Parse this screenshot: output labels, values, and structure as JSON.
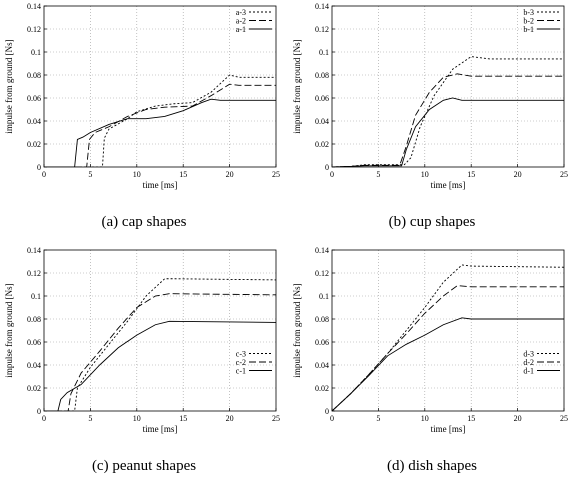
{
  "chart_data": [
    {
      "type": "line",
      "id": "a",
      "caption": "(a) cap shapes",
      "xlabel": "time [ms]",
      "ylabel": "impulse from ground [Ns]",
      "xlim": [
        0,
        25
      ],
      "ylim": [
        0,
        0.14
      ],
      "xticks": [
        "0",
        "5",
        "10",
        "15",
        "20",
        "25"
      ],
      "yticks": [
        "0",
        "0.02",
        "0.04",
        "0.06",
        "0.08",
        "0.1",
        "0.12",
        "0.14"
      ],
      "grid": true,
      "legend_position": "top-right",
      "series": [
        {
          "name": "a-3",
          "style": "dotted",
          "points": [
            [
              0,
              0
            ],
            [
              6.3,
              0
            ],
            [
              6.5,
              0.025
            ],
            [
              7,
              0.033
            ],
            [
              9,
              0.042
            ],
            [
              10,
              0.048
            ],
            [
              12,
              0.053
            ],
            [
              14,
              0.055
            ],
            [
              16,
              0.056
            ],
            [
              18,
              0.065
            ],
            [
              20,
              0.08
            ],
            [
              21,
              0.078
            ],
            [
              25,
              0.078
            ]
          ]
        },
        {
          "name": "a-2",
          "style": "dashed",
          "points": [
            [
              0,
              0
            ],
            [
              4.6,
              0
            ],
            [
              4.9,
              0.024
            ],
            [
              5.5,
              0.03
            ],
            [
              7,
              0.035
            ],
            [
              9,
              0.044
            ],
            [
              11,
              0.05
            ],
            [
              13,
              0.052
            ],
            [
              16,
              0.053
            ],
            [
              18,
              0.062
            ],
            [
              20,
              0.072
            ],
            [
              21,
              0.071
            ],
            [
              25,
              0.071
            ]
          ]
        },
        {
          "name": "a-1",
          "style": "solid",
          "points": [
            [
              0,
              0
            ],
            [
              3.3,
              0
            ],
            [
              3.6,
              0.024
            ],
            [
              4.2,
              0.026
            ],
            [
              5,
              0.03
            ],
            [
              7,
              0.037
            ],
            [
              9,
              0.042
            ],
            [
              11,
              0.042
            ],
            [
              13,
              0.044
            ],
            [
              15,
              0.049
            ],
            [
              17,
              0.056
            ],
            [
              18,
              0.059
            ],
            [
              19,
              0.058
            ],
            [
              25,
              0.058
            ]
          ]
        }
      ]
    },
    {
      "type": "line",
      "id": "b",
      "caption": "(b) cup shapes",
      "xlabel": "time [ms]",
      "ylabel": "impulse from ground [Ns]",
      "xlim": [
        0,
        25
      ],
      "ylim": [
        0,
        0.14
      ],
      "xticks": [
        "0",
        "5",
        "10",
        "15",
        "20",
        "25"
      ],
      "yticks": [
        "0",
        "0.02",
        "0.04",
        "0.06",
        "0.08",
        "0.1",
        "0.12",
        "0.14"
      ],
      "grid": true,
      "legend_position": "top-right",
      "series": [
        {
          "name": "b-3",
          "style": "dotted",
          "points": [
            [
              0,
              0
            ],
            [
              2,
              0.0005
            ],
            [
              3.5,
              0.002
            ],
            [
              7.8,
              0.002
            ],
            [
              8.5,
              0.008
            ],
            [
              9.5,
              0.035
            ],
            [
              11,
              0.062
            ],
            [
              13,
              0.085
            ],
            [
              15,
              0.096
            ],
            [
              17,
              0.094
            ],
            [
              25,
              0.094
            ]
          ]
        },
        {
          "name": "b-2",
          "style": "dashed",
          "points": [
            [
              0,
              0
            ],
            [
              2,
              0.0005
            ],
            [
              3.5,
              0.0015
            ],
            [
              7.3,
              0.0015
            ],
            [
              8,
              0.018
            ],
            [
              9,
              0.045
            ],
            [
              10.5,
              0.065
            ],
            [
              12,
              0.078
            ],
            [
              13.5,
              0.081
            ],
            [
              15,
              0.079
            ],
            [
              25,
              0.079
            ]
          ]
        },
        {
          "name": "b-1",
          "style": "solid",
          "points": [
            [
              0,
              0
            ],
            [
              2,
              0.0005
            ],
            [
              3.5,
              0.001
            ],
            [
              7.5,
              0.001
            ],
            [
              8,
              0.015
            ],
            [
              9,
              0.035
            ],
            [
              10.5,
              0.05
            ],
            [
              12,
              0.058
            ],
            [
              13,
              0.06
            ],
            [
              14,
              0.058
            ],
            [
              25,
              0.058
            ]
          ]
        }
      ]
    },
    {
      "type": "line",
      "id": "c",
      "caption": "(c) peanut shapes",
      "xlabel": "time [ms]",
      "ylabel": "impulse from ground [Ns]",
      "xlim": [
        0,
        25
      ],
      "ylim": [
        0,
        0.14
      ],
      "xticks": [
        "0",
        "5",
        "10",
        "15",
        "20",
        "25"
      ],
      "yticks": [
        "0",
        "0.02",
        "0.04",
        "0.06",
        "0.08",
        "0.1",
        "0.12",
        "0.14"
      ],
      "grid": true,
      "legend_position": "center-right",
      "series": [
        {
          "name": "c-3",
          "style": "dotted",
          "points": [
            [
              0,
              0
            ],
            [
              3.3,
              0
            ],
            [
              3.6,
              0.02
            ],
            [
              5,
              0.038
            ],
            [
              7,
              0.058
            ],
            [
              9,
              0.078
            ],
            [
              11,
              0.1
            ],
            [
              13,
              0.115
            ],
            [
              14,
              0.115
            ],
            [
              25,
              0.114
            ]
          ]
        },
        {
          "name": "c-2",
          "style": "dashed",
          "points": [
            [
              0,
              0
            ],
            [
              2.6,
              0
            ],
            [
              2.9,
              0.015
            ],
            [
              4,
              0.033
            ],
            [
              6,
              0.052
            ],
            [
              8,
              0.072
            ],
            [
              10,
              0.09
            ],
            [
              12,
              0.1
            ],
            [
              13.5,
              0.102
            ],
            [
              25,
              0.101
            ]
          ]
        },
        {
          "name": "c-1",
          "style": "solid",
          "points": [
            [
              0,
              0
            ],
            [
              1.5,
              0
            ],
            [
              1.8,
              0.01
            ],
            [
              2.5,
              0.016
            ],
            [
              4,
              0.023
            ],
            [
              6,
              0.04
            ],
            [
              8,
              0.055
            ],
            [
              10,
              0.066
            ],
            [
              12,
              0.075
            ],
            [
              13.5,
              0.078
            ],
            [
              25,
              0.077
            ]
          ]
        }
      ]
    },
    {
      "type": "line",
      "id": "d",
      "caption": "(d) dish shapes",
      "xlabel": "time [ms]",
      "ylabel": "impulse from ground [Ns]",
      "xlim": [
        0,
        25
      ],
      "ylim": [
        0,
        0.14
      ],
      "xticks": [
        "0",
        "5",
        "10",
        "15",
        "20",
        "25"
      ],
      "yticks": [
        "0",
        "0.02",
        "0.04",
        "0.06",
        "0.08",
        "0.1",
        "0.12",
        "0.14"
      ],
      "grid": true,
      "legend_position": "center-right",
      "series": [
        {
          "name": "d-3",
          "style": "dotted",
          "points": [
            [
              0,
              0
            ],
            [
              2,
              0.015
            ],
            [
              4,
              0.032
            ],
            [
              6,
              0.05
            ],
            [
              8,
              0.07
            ],
            [
              10,
              0.09
            ],
            [
              12,
              0.112
            ],
            [
              14,
              0.127
            ],
            [
              15,
              0.126
            ],
            [
              25,
              0.125
            ]
          ]
        },
        {
          "name": "d-2",
          "style": "dashed",
          "points": [
            [
              0,
              0
            ],
            [
              2,
              0.015
            ],
            [
              4,
              0.032
            ],
            [
              6,
              0.05
            ],
            [
              8,
              0.067
            ],
            [
              10,
              0.085
            ],
            [
              12,
              0.1
            ],
            [
              13.5,
              0.109
            ],
            [
              15,
              0.108
            ],
            [
              25,
              0.108
            ]
          ]
        },
        {
          "name": "d-1",
          "style": "solid",
          "points": [
            [
              0,
              0
            ],
            [
              2,
              0.015
            ],
            [
              4,
              0.031
            ],
            [
              6,
              0.048
            ],
            [
              8,
              0.058
            ],
            [
              10,
              0.066
            ],
            [
              12,
              0.075
            ],
            [
              14,
              0.081
            ],
            [
              15,
              0.08
            ],
            [
              25,
              0.08
            ]
          ]
        }
      ]
    }
  ]
}
